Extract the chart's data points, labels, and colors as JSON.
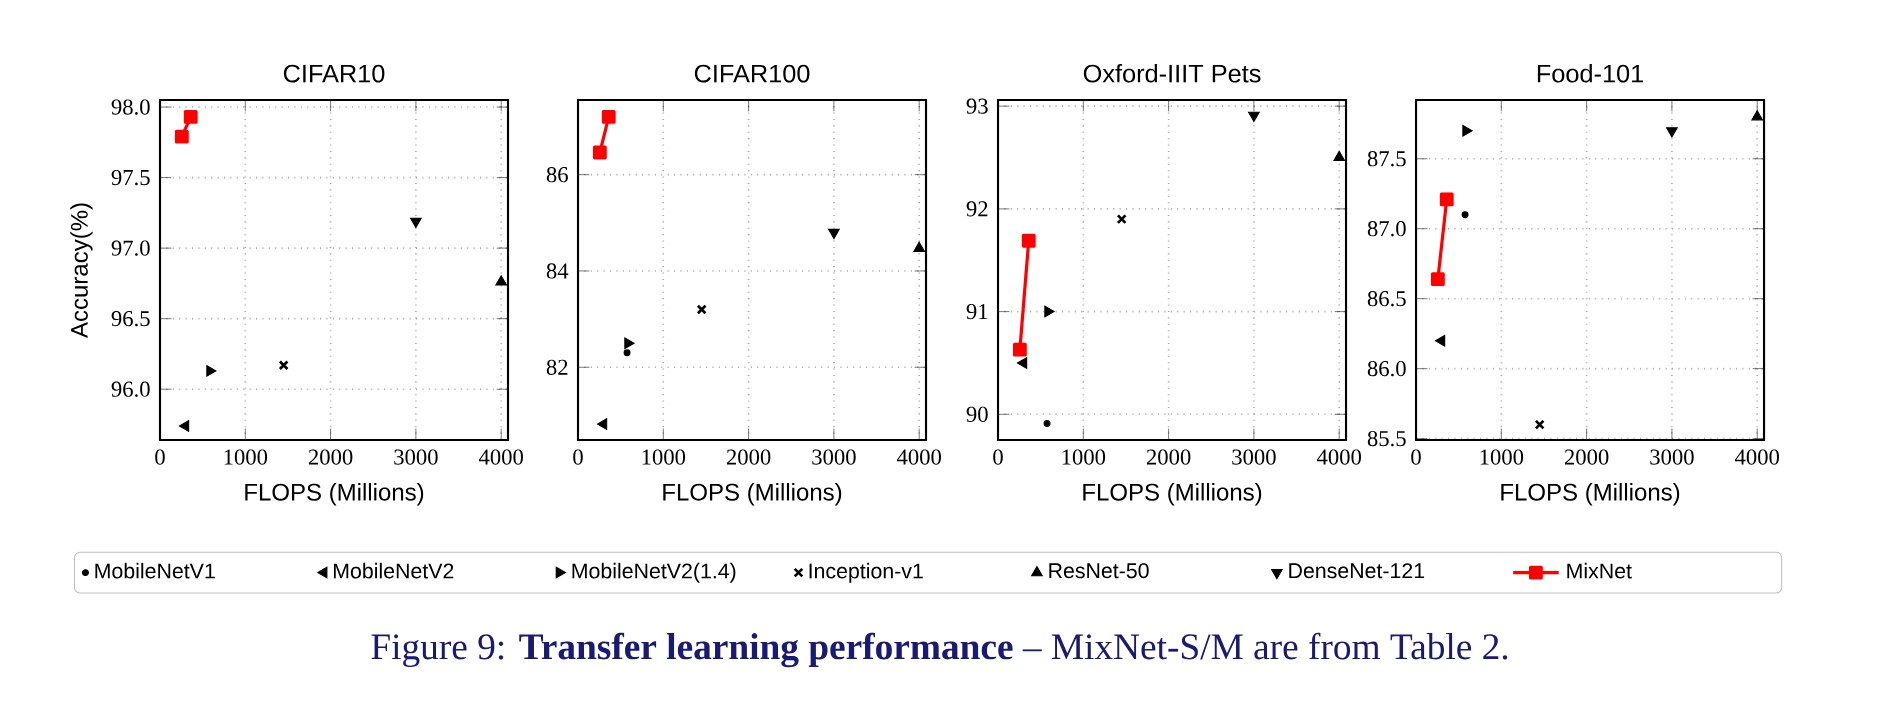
{
  "chart_data": [
    {
      "type": "scatter",
      "title": "CIFAR10",
      "xlabel": "FLOPS (Millions)",
      "ylabel": "Accuracy(%)",
      "xlim": [
        0,
        4080
      ],
      "xticks": [
        0,
        1000,
        2000,
        3000,
        4000
      ],
      "ylim": [
        95.64,
        98.05
      ],
      "yticks": [
        {
          "value": 96,
          "label": "96.0"
        },
        {
          "value": 96.5,
          "label": "96.5"
        },
        {
          "value": 97,
          "label": "97.0"
        },
        {
          "value": 97.5,
          "label": "97.5"
        },
        {
          "value": 98,
          "label": "98.0"
        }
      ],
      "grid": true,
      "legend": "bottom",
      "annotations": [
        "Figure 9: **Transfer learning performance** – MixNet-S/M are from Table 2."
      ],
      "series": [
        {
          "name": "MobileNetV1",
          "color": "#000000",
          "marker": "circle",
          "x": [
            null
          ],
          "values": [
            null
          ]
        },
        {
          "name": "MobileNetV2",
          "color": "#000000",
          "marker": "triangle-left",
          "x": [
            300
          ],
          "values": [
            95.74
          ]
        },
        {
          "name": "MobileNetV2(1.4)",
          "color": "#000000",
          "marker": "triangle-right",
          "x": [
            585
          ],
          "values": [
            96.13
          ]
        },
        {
          "name": "Inception-v1",
          "color": "#000000",
          "marker": "cross",
          "x": [
            1450
          ],
          "values": [
            96.17
          ]
        },
        {
          "name": "ResNet-50",
          "color": "#000000",
          "marker": "triangle",
          "x": [
            4000
          ],
          "values": [
            96.76
          ]
        },
        {
          "name": "DenseNet-121",
          "color": "#000000",
          "marker": "triangle-down",
          "x": [
            3000
          ],
          "values": [
            97.19
          ]
        },
        {
          "name": "MixNet",
          "type": "line",
          "color": "#ff0000",
          "marker": "square",
          "x": [
            256,
            360
          ],
          "values": [
            97.79,
            97.93
          ]
        }
      ]
    },
    {
      "type": "scatter",
      "title": "CIFAR100",
      "xlabel": "FLOPS (Millions)",
      "xlim": [
        0,
        4080
      ],
      "xticks": [
        0,
        1000,
        2000,
        3000,
        4000
      ],
      "ylim": [
        80.49,
        87.55
      ],
      "yticks": [
        82,
        84,
        86
      ],
      "grid": true,
      "series": [
        {
          "color": "#000000",
          "marker": "circle",
          "x": [
            575
          ],
          "values": [
            82.3
          ]
        },
        {
          "color": "#000000",
          "marker": "triangle-left",
          "x": [
            300
          ],
          "values": [
            80.82
          ]
        },
        {
          "color": "#000000",
          "marker": "triangle-right",
          "x": [
            585
          ],
          "values": [
            82.5
          ]
        },
        {
          "color": "#000000",
          "marker": "cross",
          "x": [
            1450
          ],
          "values": [
            83.2
          ]
        },
        {
          "color": "#000000",
          "marker": "triangle",
          "x": [
            4000
          ],
          "values": [
            84.47
          ]
        },
        {
          "color": "#000000",
          "marker": "triangle-down",
          "x": [
            3000
          ],
          "values": [
            84.8
          ]
        },
        {
          "type": "line",
          "color": "#ff0000",
          "marker": "square",
          "x": [
            256,
            360
          ],
          "values": [
            86.46,
            87.2
          ]
        }
      ]
    },
    {
      "type": "scatter",
      "title": "Oxford-IIIT Pets",
      "xlabel": "FLOPS (Millions)",
      "xlim": [
        0,
        4080
      ],
      "xticks": [
        0,
        1000,
        2000,
        3000,
        4000
      ],
      "ylim": [
        89.75,
        93.06
      ],
      "yticks": [
        90,
        91,
        92,
        93
      ],
      "grid": true,
      "series": [
        {
          "color": "#000000",
          "marker": "circle",
          "x": [
            575
          ],
          "values": [
            89.91
          ]
        },
        {
          "color": "#000000",
          "marker": "triangle-left",
          "x": [
            300
          ],
          "values": [
            90.5
          ]
        },
        {
          "color": "#000000",
          "marker": "triangle-right",
          "x": [
            585
          ],
          "values": [
            91.0
          ]
        },
        {
          "color": "#000000",
          "marker": "cross",
          "x": [
            1450
          ],
          "values": [
            91.9
          ]
        },
        {
          "color": "#000000",
          "marker": "triangle",
          "x": [
            4000
          ],
          "values": [
            92.5
          ]
        },
        {
          "color": "#000000",
          "marker": "triangle-down",
          "x": [
            3000
          ],
          "values": [
            92.91
          ]
        },
        {
          "type": "line",
          "color": "#ff0000",
          "marker": "square",
          "x": [
            256,
            360
          ],
          "values": [
            90.63,
            91.69
          ]
        }
      ]
    },
    {
      "type": "scatter",
      "title": "Food-101",
      "xlabel": "FLOPS (Millions)",
      "xlim": [
        0,
        4080
      ],
      "xticks": [
        0,
        1000,
        2000,
        3000,
        4000
      ],
      "ylim": [
        85.49,
        87.92
      ],
      "yticks": [
        85.5,
        {
          "value": 86,
          "label": "86.0"
        },
        86.5,
        {
          "value": 87,
          "label": "87.0"
        },
        87.5
      ],
      "grid": true,
      "series": [
        {
          "color": "#000000",
          "marker": "circle",
          "x": [
            575
          ],
          "values": [
            87.1
          ]
        },
        {
          "color": "#000000",
          "marker": "triangle-left",
          "x": [
            300
          ],
          "values": [
            86.2
          ]
        },
        {
          "color": "#000000",
          "marker": "triangle-right",
          "x": [
            585
          ],
          "values": [
            87.7
          ]
        },
        {
          "color": "#000000",
          "marker": "cross",
          "x": [
            1450
          ],
          "values": [
            85.6
          ]
        },
        {
          "color": "#000000",
          "marker": "triangle",
          "x": [
            4000
          ],
          "values": [
            87.8
          ]
        },
        {
          "color": "#000000",
          "marker": "triangle-down",
          "x": [
            3000
          ],
          "values": [
            87.7
          ]
        },
        {
          "type": "line",
          "color": "#ff0000",
          "marker": "square",
          "x": [
            256,
            360
          ],
          "values": [
            86.64,
            87.21
          ]
        }
      ]
    }
  ]
}
